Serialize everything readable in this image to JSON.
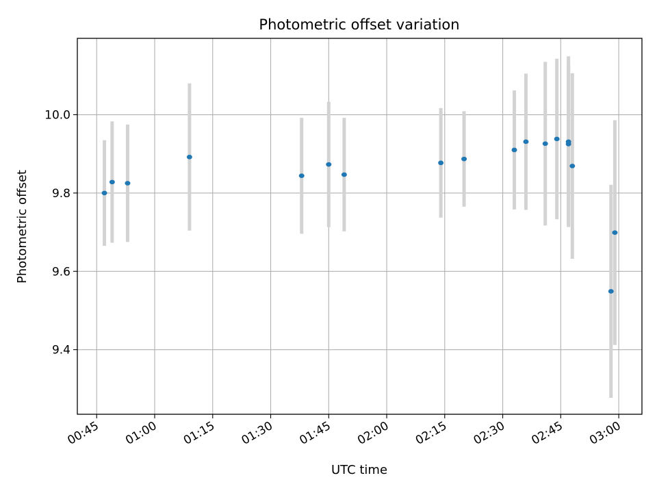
{
  "chart_data": {
    "type": "scatter",
    "title": "Photometric offset variation",
    "xlabel": "UTC time",
    "ylabel": "Photometric offset",
    "xlim": [
      "00:40",
      "03:06"
    ],
    "ylim": [
      9.235,
      10.195
    ],
    "grid": true,
    "x_ticks": [
      "00:45",
      "01:00",
      "01:15",
      "01:30",
      "01:45",
      "02:00",
      "02:15",
      "02:30",
      "02:45",
      "03:00"
    ],
    "y_ticks": [
      9.4,
      9.6,
      9.8,
      10.0
    ],
    "y_tick_labels": [
      "9.4",
      "9.6",
      "9.8",
      "10.0"
    ],
    "colors": {
      "point": "#1f77b4",
      "errorbar": "#d3d3d3",
      "grid": "#b0b0b0"
    },
    "series": [
      {
        "points": [
          {
            "x": "00:47",
            "y": 9.8,
            "err": 0.135
          },
          {
            "x": "00:49",
            "y": 9.828,
            "err": 0.155
          },
          {
            "x": "00:53",
            "y": 9.825,
            "err": 0.15
          },
          {
            "x": "01:09",
            "y": 9.892,
            "err": 0.188
          },
          {
            "x": "01:38",
            "y": 9.844,
            "err": 0.148
          },
          {
            "x": "01:45",
            "y": 9.873,
            "err": 0.16
          },
          {
            "x": "01:49",
            "y": 9.847,
            "err": 0.145
          },
          {
            "x": "02:14",
            "y": 9.877,
            "err": 0.14
          },
          {
            "x": "02:20",
            "y": 9.887,
            "err": 0.122
          },
          {
            "x": "02:33",
            "y": 9.91,
            "err": 0.152
          },
          {
            "x": "02:36",
            "y": 9.931,
            "err": 0.174
          },
          {
            "x": "02:41",
            "y": 9.926,
            "err": 0.209
          },
          {
            "x": "02:44",
            "y": 9.938,
            "err": 0.205
          },
          {
            "x": "02:47",
            "y": 9.931,
            "err": 0.218
          },
          {
            "x": "02:47",
            "y": 9.925,
            "err": 0.205
          },
          {
            "x": "02:48",
            "y": 9.869,
            "err": 0.237
          },
          {
            "x": "02:58",
            "y": 9.549,
            "err": 0.272
          },
          {
            "x": "02:59",
            "y": 9.699,
            "err": 0.287
          }
        ]
      }
    ]
  }
}
